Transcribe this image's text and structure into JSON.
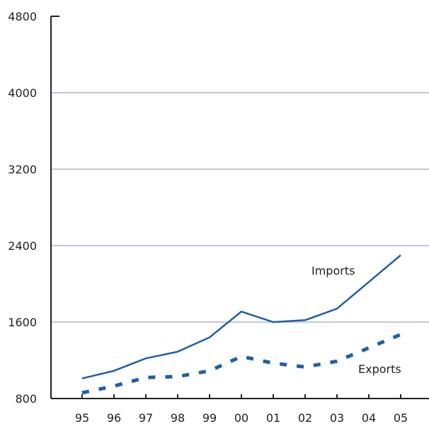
{
  "chart_data": {
    "type": "line",
    "title": "",
    "xlabel": "",
    "ylabel": "",
    "categories": [
      "95",
      "96",
      "97",
      "98",
      "99",
      "00",
      "01",
      "02",
      "03",
      "04",
      "05"
    ],
    "ylim": [
      800,
      4800
    ],
    "yticks": [
      800,
      1600,
      2400,
      3200,
      4000,
      4800
    ],
    "grid": true,
    "legend": "none",
    "series": [
      {
        "name": "Imports",
        "style": "solid",
        "color": "#1f5fa6",
        "values": [
          1010,
          1090,
          1220,
          1290,
          1440,
          1710,
          1600,
          1620,
          1740,
          2020,
          2300
        ]
      },
      {
        "name": "Exports",
        "style": "dashed",
        "color": "#1f5fa6",
        "values": [
          860,
          930,
          1020,
          1030,
          1090,
          1240,
          1170,
          1130,
          1190,
          1330,
          1470
        ]
      }
    ],
    "colors": {
      "axis": "#222222",
      "grid": "#c3c6e0",
      "line": "#1f5fa6"
    }
  }
}
